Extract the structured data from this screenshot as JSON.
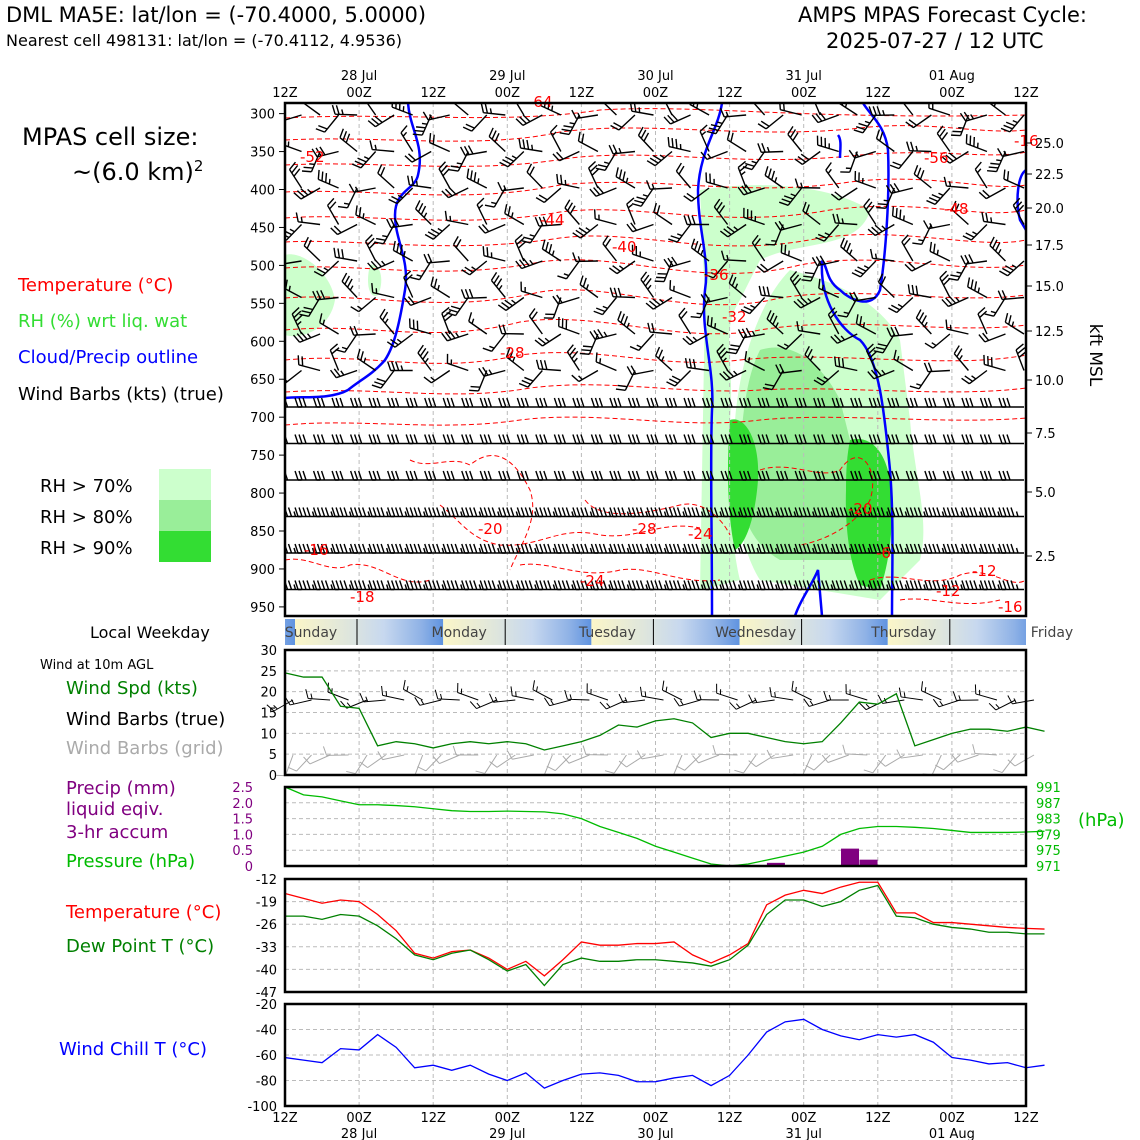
{
  "header": {
    "left_title": "DML MA5E: lat/lon = (-70.4000, 5.0000)",
    "left_sub": "Nearest cell 498131: lat/lon = (-70.4112, 4.9536)",
    "right_title": "AMPS MPAS Forecast Cycle:",
    "right_sub": "2025-07-27 / 12 UTC"
  },
  "colors": {
    "temperature": "#ff0000",
    "rh": "#33dd33",
    "cloud": "#0000ff",
    "wind_grid": "#aaaaaa",
    "precip": "#800080",
    "pressure": "#00bb00",
    "dewpoint": "#008000",
    "windchill": "#0000ff",
    "rh70": "#ccffcc",
    "rh80": "#99ee99",
    "rh90": "#33dd33"
  },
  "side_labels": {
    "cell_size_line1": "MPAS cell size:",
    "cell_size_line2": "~(6.0 km)",
    "cell_size_sup": "2",
    "legend_temperature": "Temperature (°C)",
    "legend_rh": "RH (%) wrt liq. wat",
    "legend_cloud": "Cloud/Precip outline",
    "legend_barbs": "Wind Barbs (kts) (true)",
    "rh70": "RH > 70%",
    "rh80": "RH > 80%",
    "rh90": "RH > 90%",
    "local_weekday": "Local Weekday",
    "wind_10m": "Wind at 10m AGL",
    "wind_spd": "Wind Spd (kts)",
    "barbs_true": "Wind Barbs (true)",
    "barbs_grid": "Wind Barbs (grid)",
    "precip_1": "Precip (mm)",
    "precip_2": "liquid eqiv.",
    "precip_3": "3-hr accum",
    "pressure": "Pressure (hPa)",
    "hpa_unit": "(hPa)",
    "temp": "Temperature (°C)",
    "dewpoint": "Dew Point T (°C)",
    "windchill": "Wind Chill T (°C)",
    "kft": "kft MSL"
  },
  "chart_data": [
    {
      "type": "time-height",
      "time_ticks": [
        "12Z",
        "00Z",
        "12Z",
        "00Z",
        "12Z",
        "00Z",
        "12Z",
        "00Z",
        "12Z",
        "00Z",
        "12Z"
      ],
      "date_ticks": [
        "28 Jul",
        "29 Jul",
        "30 Jul",
        "31 Jul",
        "01 Aug"
      ],
      "pressure_levels": [
        300,
        350,
        400,
        450,
        500,
        550,
        600,
        650,
        700,
        750,
        800,
        850,
        900,
        950
      ],
      "kft_ticks": [
        "25.0",
        "22.5",
        "20.0",
        "17.5",
        "15.0",
        "12.5",
        "10.0",
        "7.5",
        "5.0",
        "2.5"
      ],
      "temperature_labels": [
        "-64",
        "-52",
        "-44",
        "-40",
        "-36",
        "-32",
        "-28",
        "-20",
        "-28",
        "-24",
        "-24",
        "-20",
        "-16",
        "-16",
        "-18",
        "-56",
        "-48",
        "-12",
        "-12",
        "-16",
        "-6"
      ]
    },
    {
      "type": "weekday-band",
      "days": [
        "Sunday",
        "Monday",
        "Tuesday",
        "Wednesday",
        "Thursday",
        "Friday"
      ]
    },
    {
      "type": "line",
      "name": "wind",
      "yticks": [
        "0",
        "5",
        "10",
        "15",
        "20",
        "25",
        "30"
      ],
      "ylim": [
        0,
        30
      ],
      "values": [
        24.5,
        23.5,
        23.5,
        16.5,
        16,
        7,
        8,
        7.5,
        6.5,
        7.5,
        8,
        7.5,
        8,
        7.5,
        6,
        7,
        8,
        9.5,
        12,
        11.5,
        13,
        13.5,
        12.5,
        9,
        10,
        10,
        9,
        8,
        7.5,
        8,
        12.5,
        17.5,
        17,
        19.5,
        7,
        8.5,
        10,
        11,
        11,
        10.5,
        11.5,
        10.5
      ]
    },
    {
      "type": "bar+line",
      "name": "precip-pressure",
      "precip_ticks": [
        "2.5",
        "2.0",
        "1.5",
        "1.0",
        "0.5",
        "0"
      ],
      "pressure_ticks": [
        "991",
        "987",
        "983",
        "979",
        "975",
        "971"
      ],
      "precip_ylim": [
        0,
        2.5
      ],
      "pressure_ylim": [
        971,
        991
      ],
      "precip_bars": [
        {
          "x": 26.5,
          "v": 0.1
        },
        {
          "x": 30.5,
          "v": 0.55
        },
        {
          "x": 31.5,
          "v": 0.2
        }
      ],
      "pressure": [
        991,
        989,
        988.5,
        987.5,
        986.5,
        986.5,
        986.3,
        986,
        985.5,
        985,
        984.8,
        984.8,
        984.9,
        984.8,
        984.7,
        984.2,
        983,
        981,
        979.5,
        978,
        976,
        974.5,
        973,
        971.5,
        971,
        971.5,
        972.5,
        973.5,
        974.5,
        976,
        979,
        980.5,
        981,
        981,
        980.8,
        980.5,
        980,
        979.5,
        979.5,
        979.5,
        979.6,
        979.8
      ]
    },
    {
      "type": "line",
      "name": "temp-dewpoint",
      "yticks": [
        "-12",
        "-19",
        "-26",
        "-33",
        "-40",
        "-47"
      ],
      "ylim": [
        -47,
        -12
      ],
      "temperature": [
        -16.5,
        -18,
        -19.5,
        -18.5,
        -19,
        -23,
        -28,
        -35,
        -36.5,
        -34.5,
        -34,
        -36.5,
        -40,
        -37.5,
        -42,
        -37,
        -31.5,
        -32.5,
        -32.5,
        -32,
        -32,
        -31.5,
        -35.5,
        -38,
        -35.5,
        -32,
        -20,
        -17,
        -15.5,
        -16.5,
        -14.5,
        -13,
        -13,
        -22.5,
        -22.5,
        -25.5,
        -25.5,
        -26,
        -26.5,
        -27,
        -27.3,
        -27.5
      ],
      "dewpoint": [
        -23.5,
        -23.5,
        -24.5,
        -23,
        -23.5,
        -26.5,
        -30.5,
        -35.5,
        -37,
        -35,
        -34,
        -37,
        -40.5,
        -38.5,
        -45,
        -38.5,
        -36.5,
        -37.5,
        -37.5,
        -37,
        -37,
        -37.5,
        -38,
        -39,
        -37,
        -32.5,
        -23,
        -18.5,
        -18.5,
        -20.5,
        -19,
        -15.5,
        -14,
        -23.5,
        -24,
        -26,
        -27,
        -27.5,
        -28.5,
        -28.5,
        -29,
        -29
      ]
    },
    {
      "type": "line",
      "name": "windchill",
      "yticks": [
        "-20",
        "-40",
        "-60",
        "-80",
        "-100"
      ],
      "ylim": [
        -100,
        -20
      ],
      "values": [
        -62,
        -64,
        -66,
        -55,
        -56,
        -44,
        -54,
        -70,
        -68,
        -72,
        -68,
        -75,
        -80,
        -74,
        -86,
        -80,
        -75,
        -74,
        -76,
        -81,
        -81,
        -78,
        -76,
        -84,
        -76,
        -60,
        -42,
        -34,
        -32,
        -40,
        -45,
        -48,
        -44,
        -46,
        -44,
        -50,
        -62,
        -64,
        -67,
        -66,
        -70,
        -68
      ]
    }
  ]
}
